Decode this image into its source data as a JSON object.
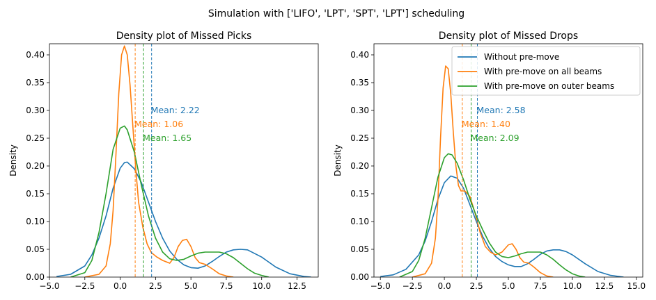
{
  "suptitle": "Simulation with ['LIFO', 'LPT', 'SPT', 'LPT'] scheduling",
  "colors": {
    "blue": "#1f77b4",
    "orange": "#ff7f0e",
    "green": "#2ca02c"
  },
  "legend": {
    "placement": "upper-right of right panel",
    "entries": [
      "Without pre-move",
      "With pre-move on all beams",
      "With pre-move on outer beams"
    ]
  },
  "chart_data": [
    {
      "type": "line",
      "title": "Density plot of Missed Picks",
      "ylabel": "Density",
      "xlabel": "",
      "xlim": [
        -5.0,
        14.0
      ],
      "ylim": [
        0.0,
        0.42
      ],
      "xticks": [
        -5.0,
        -2.5,
        0.0,
        2.5,
        5.0,
        7.5,
        10.0,
        12.5
      ],
      "xtick_labels": [
        "−5.0",
        "−2.5",
        "0.0",
        "2.5",
        "5.0",
        "7.5",
        "10.0",
        "12.5"
      ],
      "yticks": [
        0.0,
        0.05,
        0.1,
        0.15,
        0.2,
        0.25,
        0.3,
        0.35,
        0.4
      ],
      "ytick_labels": [
        "0.00",
        "0.05",
        "0.10",
        "0.15",
        "0.20",
        "0.25",
        "0.30",
        "0.35",
        "0.40"
      ],
      "series": [
        {
          "name": "Without pre-move",
          "color": "#1f77b4",
          "x": [
            -4.5,
            -3.5,
            -2.5,
            -2.0,
            -1.5,
            -1.0,
            -0.5,
            0.0,
            0.3,
            0.5,
            1.0,
            1.5,
            2.0,
            2.5,
            3.0,
            3.5,
            4.0,
            4.5,
            5.0,
            5.5,
            6.0,
            6.5,
            7.0,
            7.5,
            8.0,
            8.5,
            9.0,
            10.0,
            11.0,
            12.0,
            13.0,
            13.5
          ],
          "y": [
            0.001,
            0.005,
            0.02,
            0.04,
            0.07,
            0.11,
            0.16,
            0.196,
            0.206,
            0.207,
            0.195,
            0.17,
            0.135,
            0.1,
            0.07,
            0.047,
            0.032,
            0.022,
            0.017,
            0.016,
            0.02,
            0.028,
            0.037,
            0.045,
            0.049,
            0.05,
            0.049,
            0.036,
            0.018,
            0.006,
            0.001,
            0.0
          ]
        },
        {
          "name": "With pre-move on all beams",
          "color": "#ff7f0e",
          "x": [
            -2.5,
            -1.5,
            -1.0,
            -0.7,
            -0.5,
            -0.3,
            -0.1,
            0.1,
            0.3,
            0.5,
            0.7,
            0.9,
            1.1,
            1.3,
            1.6,
            1.9,
            2.2,
            2.6,
            3.0,
            3.5,
            3.8,
            4.1,
            4.4,
            4.7,
            5.0,
            5.3,
            5.6,
            6.0,
            6.5,
            7.0,
            7.5,
            8.0
          ],
          "y": [
            0.0,
            0.005,
            0.02,
            0.06,
            0.12,
            0.22,
            0.33,
            0.4,
            0.416,
            0.4,
            0.345,
            0.27,
            0.195,
            0.135,
            0.09,
            0.06,
            0.044,
            0.036,
            0.03,
            0.025,
            0.035,
            0.055,
            0.066,
            0.068,
            0.055,
            0.035,
            0.026,
            0.023,
            0.015,
            0.006,
            0.002,
            0.0
          ]
        },
        {
          "name": "With pre-move on outer beams",
          "color": "#2ca02c",
          "x": [
            -3.5,
            -2.5,
            -2.0,
            -1.5,
            -1.0,
            -0.5,
            0.0,
            0.3,
            0.5,
            1.0,
            1.5,
            2.0,
            2.5,
            3.0,
            3.5,
            4.0,
            4.5,
            5.0,
            5.5,
            6.0,
            6.5,
            7.0,
            7.5,
            8.0,
            8.5,
            9.0,
            9.5,
            10.0,
            10.5
          ],
          "y": [
            0.0,
            0.008,
            0.03,
            0.08,
            0.15,
            0.23,
            0.268,
            0.272,
            0.265,
            0.225,
            0.165,
            0.11,
            0.07,
            0.045,
            0.033,
            0.03,
            0.032,
            0.038,
            0.043,
            0.045,
            0.045,
            0.045,
            0.042,
            0.035,
            0.025,
            0.015,
            0.007,
            0.003,
            0.0
          ]
        }
      ],
      "mean_lines": [
        {
          "value": 2.22,
          "label": "Mean: 2.22",
          "color": "#1f77b4",
          "label_y": 0.3
        },
        {
          "value": 1.06,
          "label": "Mean: 1.06",
          "color": "#ff7f0e",
          "label_y": 0.275
        },
        {
          "value": 1.65,
          "label": "Mean: 1.65",
          "color": "#2ca02c",
          "label_y": 0.25
        }
      ]
    },
    {
      "type": "line",
      "title": "Density plot of Missed Drops",
      "ylabel": "Density",
      "xlabel": "",
      "xlim": [
        -5.5,
        15.5
      ],
      "ylim": [
        0.0,
        0.42
      ],
      "xticks": [
        -5.0,
        -2.5,
        0.0,
        2.5,
        5.0,
        7.5,
        10.0,
        12.5,
        15.0
      ],
      "xtick_labels": [
        "−5.0",
        "−2.5",
        "0.0",
        "2.5",
        "5.0",
        "7.5",
        "10.0",
        "12.5",
        "15.0"
      ],
      "yticks": [
        0.0,
        0.05,
        0.1,
        0.15,
        0.2,
        0.25,
        0.3,
        0.35,
        0.4
      ],
      "ytick_labels": [
        "0.00",
        "0.05",
        "0.10",
        "0.15",
        "0.20",
        "0.25",
        "0.30",
        "0.35",
        "0.40"
      ],
      "series": [
        {
          "name": "Without pre-move",
          "color": "#1f77b4",
          "x": [
            -5.0,
            -4.0,
            -3.0,
            -2.0,
            -1.5,
            -1.0,
            -0.5,
            0.0,
            0.5,
            1.0,
            1.5,
            2.0,
            2.5,
            3.0,
            3.5,
            4.0,
            4.5,
            5.0,
            5.5,
            6.0,
            6.5,
            7.0,
            7.5,
            8.0,
            8.5,
            9.0,
            9.5,
            10.0,
            11.0,
            12.0,
            13.0,
            14.0
          ],
          "y": [
            0.001,
            0.004,
            0.014,
            0.04,
            0.065,
            0.1,
            0.14,
            0.17,
            0.182,
            0.178,
            0.16,
            0.13,
            0.1,
            0.073,
            0.052,
            0.037,
            0.028,
            0.022,
            0.019,
            0.019,
            0.024,
            0.032,
            0.041,
            0.047,
            0.049,
            0.049,
            0.046,
            0.04,
            0.024,
            0.01,
            0.003,
            0.0
          ]
        },
        {
          "name": "With pre-move on all beams",
          "color": "#ff7f0e",
          "x": [
            -2.5,
            -1.5,
            -1.0,
            -0.7,
            -0.5,
            -0.3,
            -0.1,
            0.1,
            0.3,
            0.5,
            0.7,
            0.9,
            1.1,
            1.3,
            1.6,
            2.0,
            2.4,
            2.8,
            3.2,
            3.6,
            4.0,
            4.5,
            5.0,
            5.3,
            5.6,
            5.9,
            6.2,
            6.6,
            7.0,
            7.5,
            8.0,
            8.5
          ],
          "y": [
            0.0,
            0.006,
            0.025,
            0.07,
            0.14,
            0.25,
            0.34,
            0.38,
            0.375,
            0.33,
            0.26,
            0.2,
            0.165,
            0.155,
            0.155,
            0.145,
            0.115,
            0.08,
            0.055,
            0.045,
            0.04,
            0.045,
            0.058,
            0.06,
            0.05,
            0.035,
            0.027,
            0.025,
            0.018,
            0.008,
            0.002,
            0.0
          ]
        },
        {
          "name": "With pre-move on outer beams",
          "color": "#2ca02c",
          "x": [
            -3.5,
            -2.5,
            -2.0,
            -1.5,
            -1.0,
            -0.5,
            0.0,
            0.3,
            0.6,
            1.0,
            1.5,
            2.0,
            2.5,
            3.0,
            3.5,
            4.0,
            4.5,
            5.0,
            5.5,
            6.0,
            6.5,
            7.0,
            7.5,
            8.0,
            8.5,
            9.0,
            9.5,
            10.0,
            10.5,
            11.0
          ],
          "y": [
            0.0,
            0.01,
            0.03,
            0.07,
            0.125,
            0.18,
            0.215,
            0.222,
            0.22,
            0.205,
            0.175,
            0.14,
            0.11,
            0.085,
            0.062,
            0.045,
            0.037,
            0.035,
            0.038,
            0.042,
            0.045,
            0.045,
            0.045,
            0.04,
            0.032,
            0.022,
            0.013,
            0.006,
            0.002,
            0.0
          ]
        }
      ],
      "mean_lines": [
        {
          "value": 2.58,
          "label": "Mean: 2.58",
          "color": "#1f77b4",
          "label_y": 0.3
        },
        {
          "value": 1.4,
          "label": "Mean: 1.40",
          "color": "#ff7f0e",
          "label_y": 0.275
        },
        {
          "value": 2.09,
          "label": "Mean: 2.09",
          "color": "#2ca02c",
          "label_y": 0.25
        }
      ]
    }
  ]
}
